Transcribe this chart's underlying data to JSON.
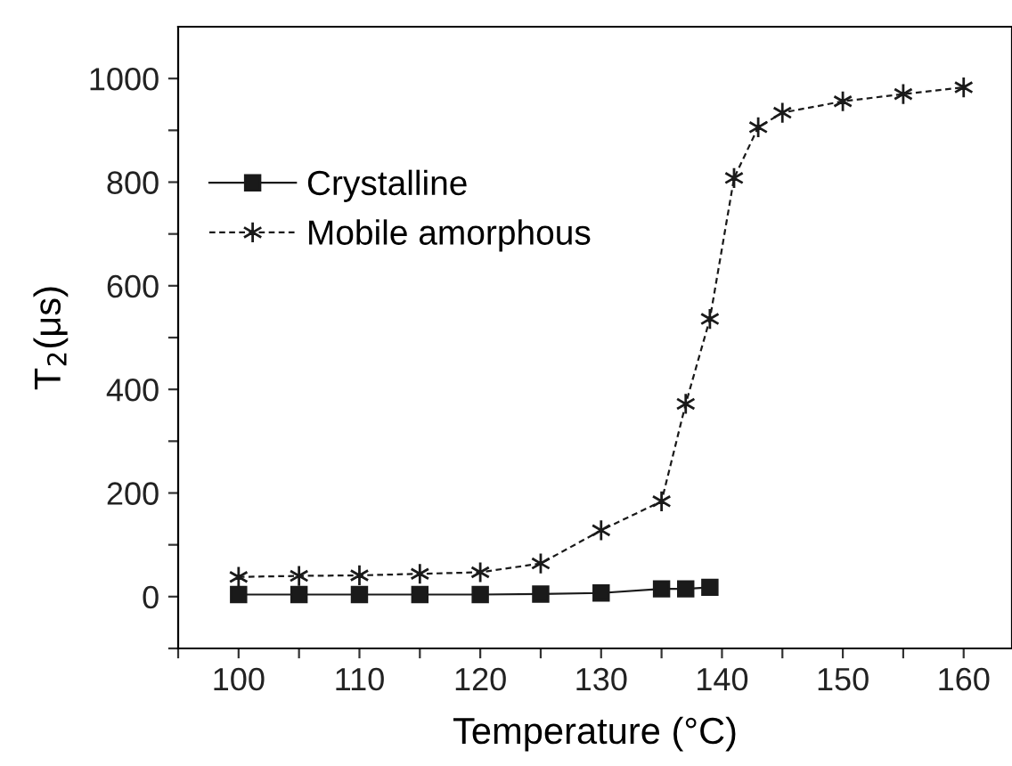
{
  "chart_data": {
    "type": "line",
    "xlabel": "Temperature (°C)",
    "ylabel": "T$_{2}$(μs)",
    "xlim": [
      95,
      164
    ],
    "ylim": [
      -100,
      1100
    ],
    "xticks": [
      {
        "value": 95,
        "label": null
      },
      100,
      {
        "value": 105,
        "label": null
      },
      110,
      {
        "value": 115,
        "label": null
      },
      120,
      {
        "value": 125,
        "label": null
      },
      130,
      {
        "value": 135,
        "label": null
      },
      140,
      {
        "value": 145,
        "label": null
      },
      150,
      {
        "value": 155,
        "label": null
      },
      160
    ],
    "yticks": [
      {
        "value": -100,
        "label": null
      },
      0,
      {
        "value": 100,
        "label": null
      },
      200,
      {
        "value": 300,
        "label": null
      },
      400,
      {
        "value": 500,
        "label": null
      },
      600,
      {
        "value": 700,
        "label": null
      },
      800,
      {
        "value": 900,
        "label": null
      },
      1000
    ],
    "grid": false,
    "legend": "upper left",
    "series": [
      {
        "name": "Crystalline",
        "color": "#1a1a1a",
        "marker": "square",
        "line_style": "solid",
        "x": [
          100,
          105,
          110,
          115,
          120,
          125,
          130,
          135,
          137,
          139
        ],
        "values": [
          4,
          4,
          4,
          4,
          4,
          5,
          7,
          15,
          15,
          18
        ]
      },
      {
        "name": "Mobile amorphous",
        "color": "#1a1a1a",
        "marker": "cross",
        "line_style": "dashed",
        "x": [
          100,
          105,
          110,
          115,
          120,
          125,
          130,
          135,
          137,
          139,
          141,
          143,
          145,
          150,
          155,
          160
        ],
        "values": [
          38,
          40,
          41,
          44,
          47,
          64,
          128,
          184,
          372,
          536,
          808,
          906,
          934,
          956,
          970,
          983
        ]
      }
    ]
  }
}
